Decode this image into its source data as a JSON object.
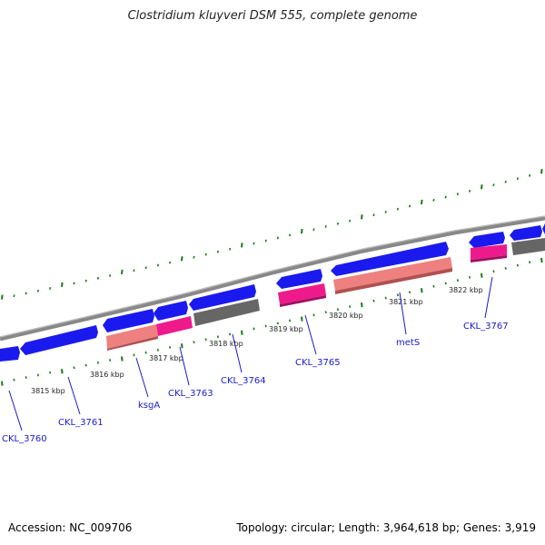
{
  "title": "Clostridium kluyveri DSM 555, complete genome",
  "footer": {
    "accession": "Accession: NC_009706",
    "summary": "Topology: circular; Length: 3,964,618 bp; Genes: 3,919"
  },
  "colors": {
    "backbone": "#888888",
    "gene_blue": "#1a1aee",
    "gene_pink": "#ee1a8c",
    "gene_salmon": "#ee8080",
    "gene_gray": "#666666",
    "tick_green": "#1a7a1a",
    "label_blue": "#1a1acc"
  },
  "ruler_labels": [
    "3815 kbp",
    "3816 kbp",
    "3817 kbp",
    "3818 kbp",
    "3819 kbp",
    "3820 kbp",
    "3821 kbp",
    "3822 kbp"
  ],
  "gene_labels": [
    "CKL_3760",
    "CKL_3761",
    "ksgA",
    "CKL_3763",
    "CKL_3764",
    "CKL_3765",
    "metS",
    "CKL_3767"
  ]
}
